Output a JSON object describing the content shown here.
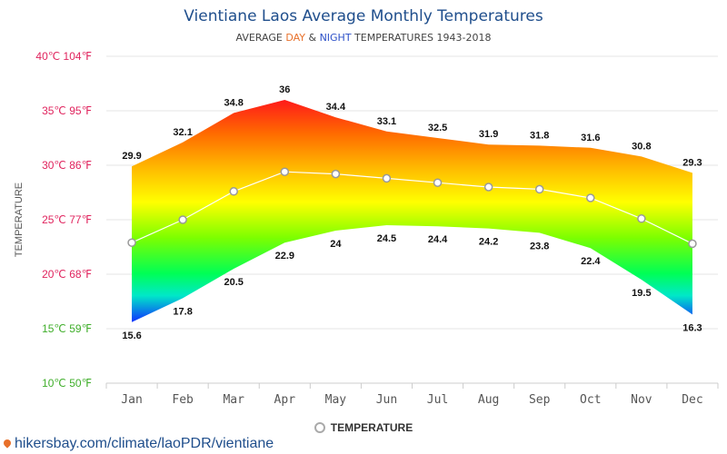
{
  "header": {
    "title": "Vientiane Laos Average Monthly Temperatures",
    "subtitle_prefix": "AVERAGE ",
    "subtitle_day": "DAY",
    "subtitle_amp": " & ",
    "subtitle_night": "NIGHT",
    "subtitle_suffix": " TEMPERATURES 1943-2018"
  },
  "legend": {
    "label": "TEMPERATURE"
  },
  "footer": {
    "url": "hikersbay.com/climate/laoPDR/vientiane"
  },
  "colors": {
    "title": "#1f4e8c",
    "day_accent": "#e8702a",
    "night_accent": "#2c50c8",
    "hot_ticks": "#e0245e",
    "cool_ticks": "#3fae2a"
  },
  "chart_data": {
    "type": "area",
    "ylabel": "TEMPERATURE",
    "ylim": [
      10,
      40
    ],
    "yticks": [
      {
        "value": 40,
        "label": "40℃ 104℉"
      },
      {
        "value": 35,
        "label": "35℃ 95℉"
      },
      {
        "value": 30,
        "label": "30℃ 86℉"
      },
      {
        "value": 25,
        "label": "25℃ 77℉"
      },
      {
        "value": 20,
        "label": "20℃ 68℉"
      },
      {
        "value": 15,
        "label": "15℃ 59℉"
      },
      {
        "value": 10,
        "label": "10℃ 50℉"
      }
    ],
    "categories": [
      "Jan",
      "Feb",
      "Mar",
      "Apr",
      "May",
      "Jun",
      "Jul",
      "Aug",
      "Sep",
      "Oct",
      "Nov",
      "Dec"
    ],
    "series": [
      {
        "name": "DAY",
        "values": [
          29.9,
          32.1,
          34.8,
          36,
          34.4,
          33.1,
          32.5,
          31.9,
          31.8,
          31.6,
          30.8,
          29.3
        ]
      },
      {
        "name": "NIGHT",
        "values": [
          15.6,
          17.8,
          20.5,
          22.9,
          24,
          24.5,
          24.4,
          24.2,
          23.8,
          22.4,
          19.5,
          16.3
        ]
      },
      {
        "name": "TEMPERATURE",
        "values": [
          22.9,
          25.0,
          27.6,
          29.4,
          29.2,
          28.8,
          28.4,
          28.0,
          27.8,
          27.0,
          25.1,
          22.8
        ]
      }
    ],
    "grid": true,
    "legend_position": "bottom-center"
  }
}
